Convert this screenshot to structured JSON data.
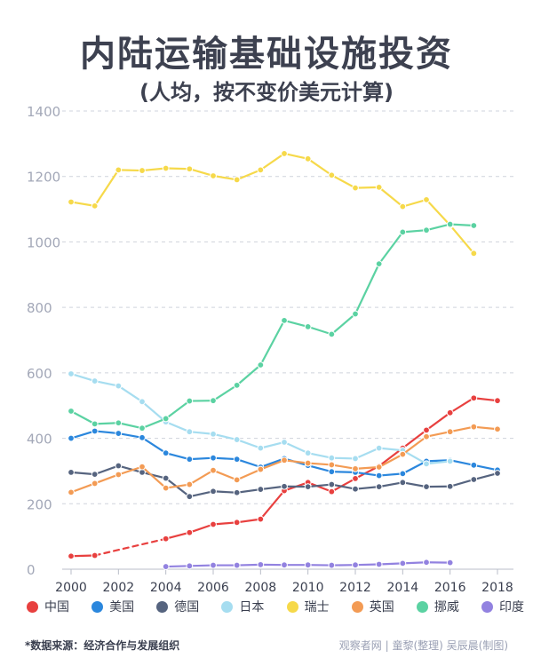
{
  "chart_data": {
    "type": "line",
    "title": "内陆运输基础设施投资",
    "subtitle": "(人均，按不变价美元计算)",
    "xlabel": "",
    "ylabel": "",
    "xlim": [
      2000,
      2018
    ],
    "ylim": [
      0,
      1400
    ],
    "x_ticks": [
      2000,
      2002,
      2004,
      2006,
      2008,
      2010,
      2012,
      2014,
      2016,
      2018
    ],
    "y_ticks": [
      0,
      200,
      400,
      600,
      800,
      1000,
      1200,
      1400
    ],
    "grid": "horizontal dashed",
    "series": [
      {
        "name": "中国",
        "color": "#e8403f",
        "x": [
          2000,
          2001,
          2004,
          2005,
          2006,
          2007,
          2008,
          2009,
          2010,
          2011,
          2012,
          2013,
          2014,
          2015,
          2016,
          2017,
          2018
        ],
        "values": [
          40,
          42,
          93,
          112,
          137,
          143,
          153,
          240,
          265,
          237,
          277,
          315,
          370,
          425,
          478,
          523,
          515
        ],
        "dashed_segment": [
          2001,
          2004
        ]
      },
      {
        "name": "美国",
        "color": "#2b87dd",
        "x": [
          2000,
          2001,
          2002,
          2003,
          2004,
          2005,
          2006,
          2007,
          2008,
          2009,
          2010,
          2011,
          2012,
          2013,
          2014,
          2015,
          2016,
          2017,
          2018
        ],
        "values": [
          400,
          422,
          415,
          402,
          355,
          336,
          340,
          336,
          312,
          338,
          317,
          298,
          296,
          286,
          292,
          330,
          333,
          318,
          303
        ]
      },
      {
        "name": "德国",
        "color": "#56647f",
        "x": [
          2000,
          2001,
          2002,
          2003,
          2004,
          2005,
          2006,
          2007,
          2008,
          2009,
          2010,
          2011,
          2012,
          2013,
          2014,
          2015,
          2016,
          2017,
          2018
        ],
        "values": [
          296,
          290,
          316,
          296,
          278,
          222,
          238,
          234,
          244,
          253,
          252,
          259,
          245,
          252,
          265,
          252,
          253,
          274,
          293
        ]
      },
      {
        "name": "日本",
        "color": "#a6ddf0",
        "x": [
          2000,
          2001,
          2002,
          2003,
          2004,
          2005,
          2006,
          2007,
          2008,
          2009,
          2010,
          2011,
          2012,
          2013,
          2014,
          2015,
          2016
        ],
        "values": [
          597,
          575,
          560,
          512,
          450,
          420,
          413,
          396,
          370,
          388,
          355,
          340,
          338,
          370,
          363,
          322,
          330
        ]
      },
      {
        "name": "瑞士",
        "color": "#f6d94a",
        "x": [
          2000,
          2001,
          2002,
          2003,
          2004,
          2005,
          2006,
          2007,
          2008,
          2009,
          2010,
          2011,
          2012,
          2013,
          2014,
          2015,
          2016,
          2017
        ],
        "values": [
          1122,
          1110,
          1220,
          1218,
          1225,
          1223,
          1202,
          1190,
          1220,
          1270,
          1254,
          1204,
          1165,
          1167,
          1108,
          1129,
          1051,
          965
        ]
      },
      {
        "name": "英国",
        "color": "#f39b54",
        "x": [
          2000,
          2001,
          2002,
          2003,
          2004,
          2005,
          2006,
          2007,
          2008,
          2009,
          2010,
          2011,
          2012,
          2013,
          2014,
          2015,
          2016,
          2017,
          2018
        ],
        "values": [
          235,
          262,
          289,
          313,
          248,
          259,
          302,
          273,
          305,
          333,
          324,
          319,
          307,
          312,
          351,
          405,
          420,
          435,
          428
        ]
      },
      {
        "name": "挪威",
        "color": "#5bd2a2",
        "x": [
          2000,
          2001,
          2002,
          2003,
          2004,
          2005,
          2006,
          2007,
          2008,
          2009,
          2010,
          2011,
          2012,
          2013,
          2014,
          2015,
          2016,
          2017
        ],
        "values": [
          483,
          444,
          447,
          431,
          460,
          514,
          515,
          562,
          624,
          760,
          741,
          718,
          780,
          933,
          1030,
          1036,
          1054,
          1050
        ]
      },
      {
        "name": "印度",
        "color": "#9282e0",
        "x": [
          2004,
          2005,
          2006,
          2007,
          2008,
          2009,
          2010,
          2011,
          2012,
          2013,
          2014,
          2015,
          2016
        ],
        "values": [
          8,
          10,
          12,
          12,
          14,
          13,
          13,
          12,
          13,
          15,
          18,
          21,
          20
        ]
      }
    ]
  },
  "footer": {
    "source": "*数据来源：经济合作与发展组织",
    "credit": "观察者网 | 童黎(整理) 吴辰晨(制图)"
  }
}
